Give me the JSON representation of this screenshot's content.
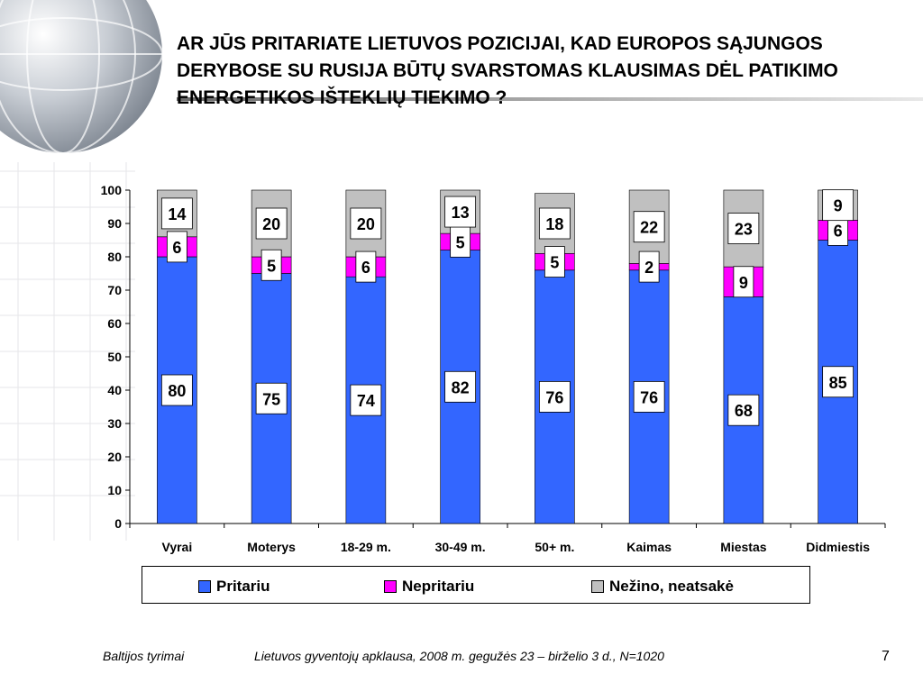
{
  "title": "AR JŪS PRITARIATE LIETUVOS POZICIJAI, KAD EUROPOS SĄJUNGOS DERYBOSE SU RUSIJA BŪTŲ SVARSTOMAS KLAUSIMAS DĖL PATIKIMO ENERGETIKOS IŠTEKLIŲ TIEKIMO ?",
  "footer": {
    "source": "Baltijos tyrimai",
    "survey": "Lietuvos gyventojų apklausa, 2008 m. gegužės 23 – birželio 3 d., N=1020",
    "page": "7"
  },
  "colors": {
    "pritariu": "#3366ff",
    "nepritariu": "#ff00ff",
    "nezino": "#c0c0c0"
  },
  "chart_data": {
    "type": "bar",
    "stacked": true,
    "categories": [
      "Vyrai",
      "Moterys",
      "18-29 m.",
      "30-49 m.",
      "50+ m.",
      "Kaimas",
      "Miestas",
      "Didmiestis"
    ],
    "series": [
      {
        "name": "Pritariu",
        "values": [
          80,
          75,
          74,
          82,
          76,
          76,
          68,
          85
        ]
      },
      {
        "name": "Nepritariu",
        "values": [
          6,
          5,
          6,
          5,
          5,
          2,
          9,
          6
        ]
      },
      {
        "name": "Nežino, neatsakė",
        "values": [
          14,
          20,
          20,
          13,
          18,
          22,
          23,
          9
        ]
      }
    ],
    "ylim": [
      0,
      100
    ],
    "yticks": [
      0,
      10,
      20,
      30,
      40,
      50,
      60,
      70,
      80,
      90,
      100
    ],
    "legend_position": "bottom",
    "grid": false
  }
}
